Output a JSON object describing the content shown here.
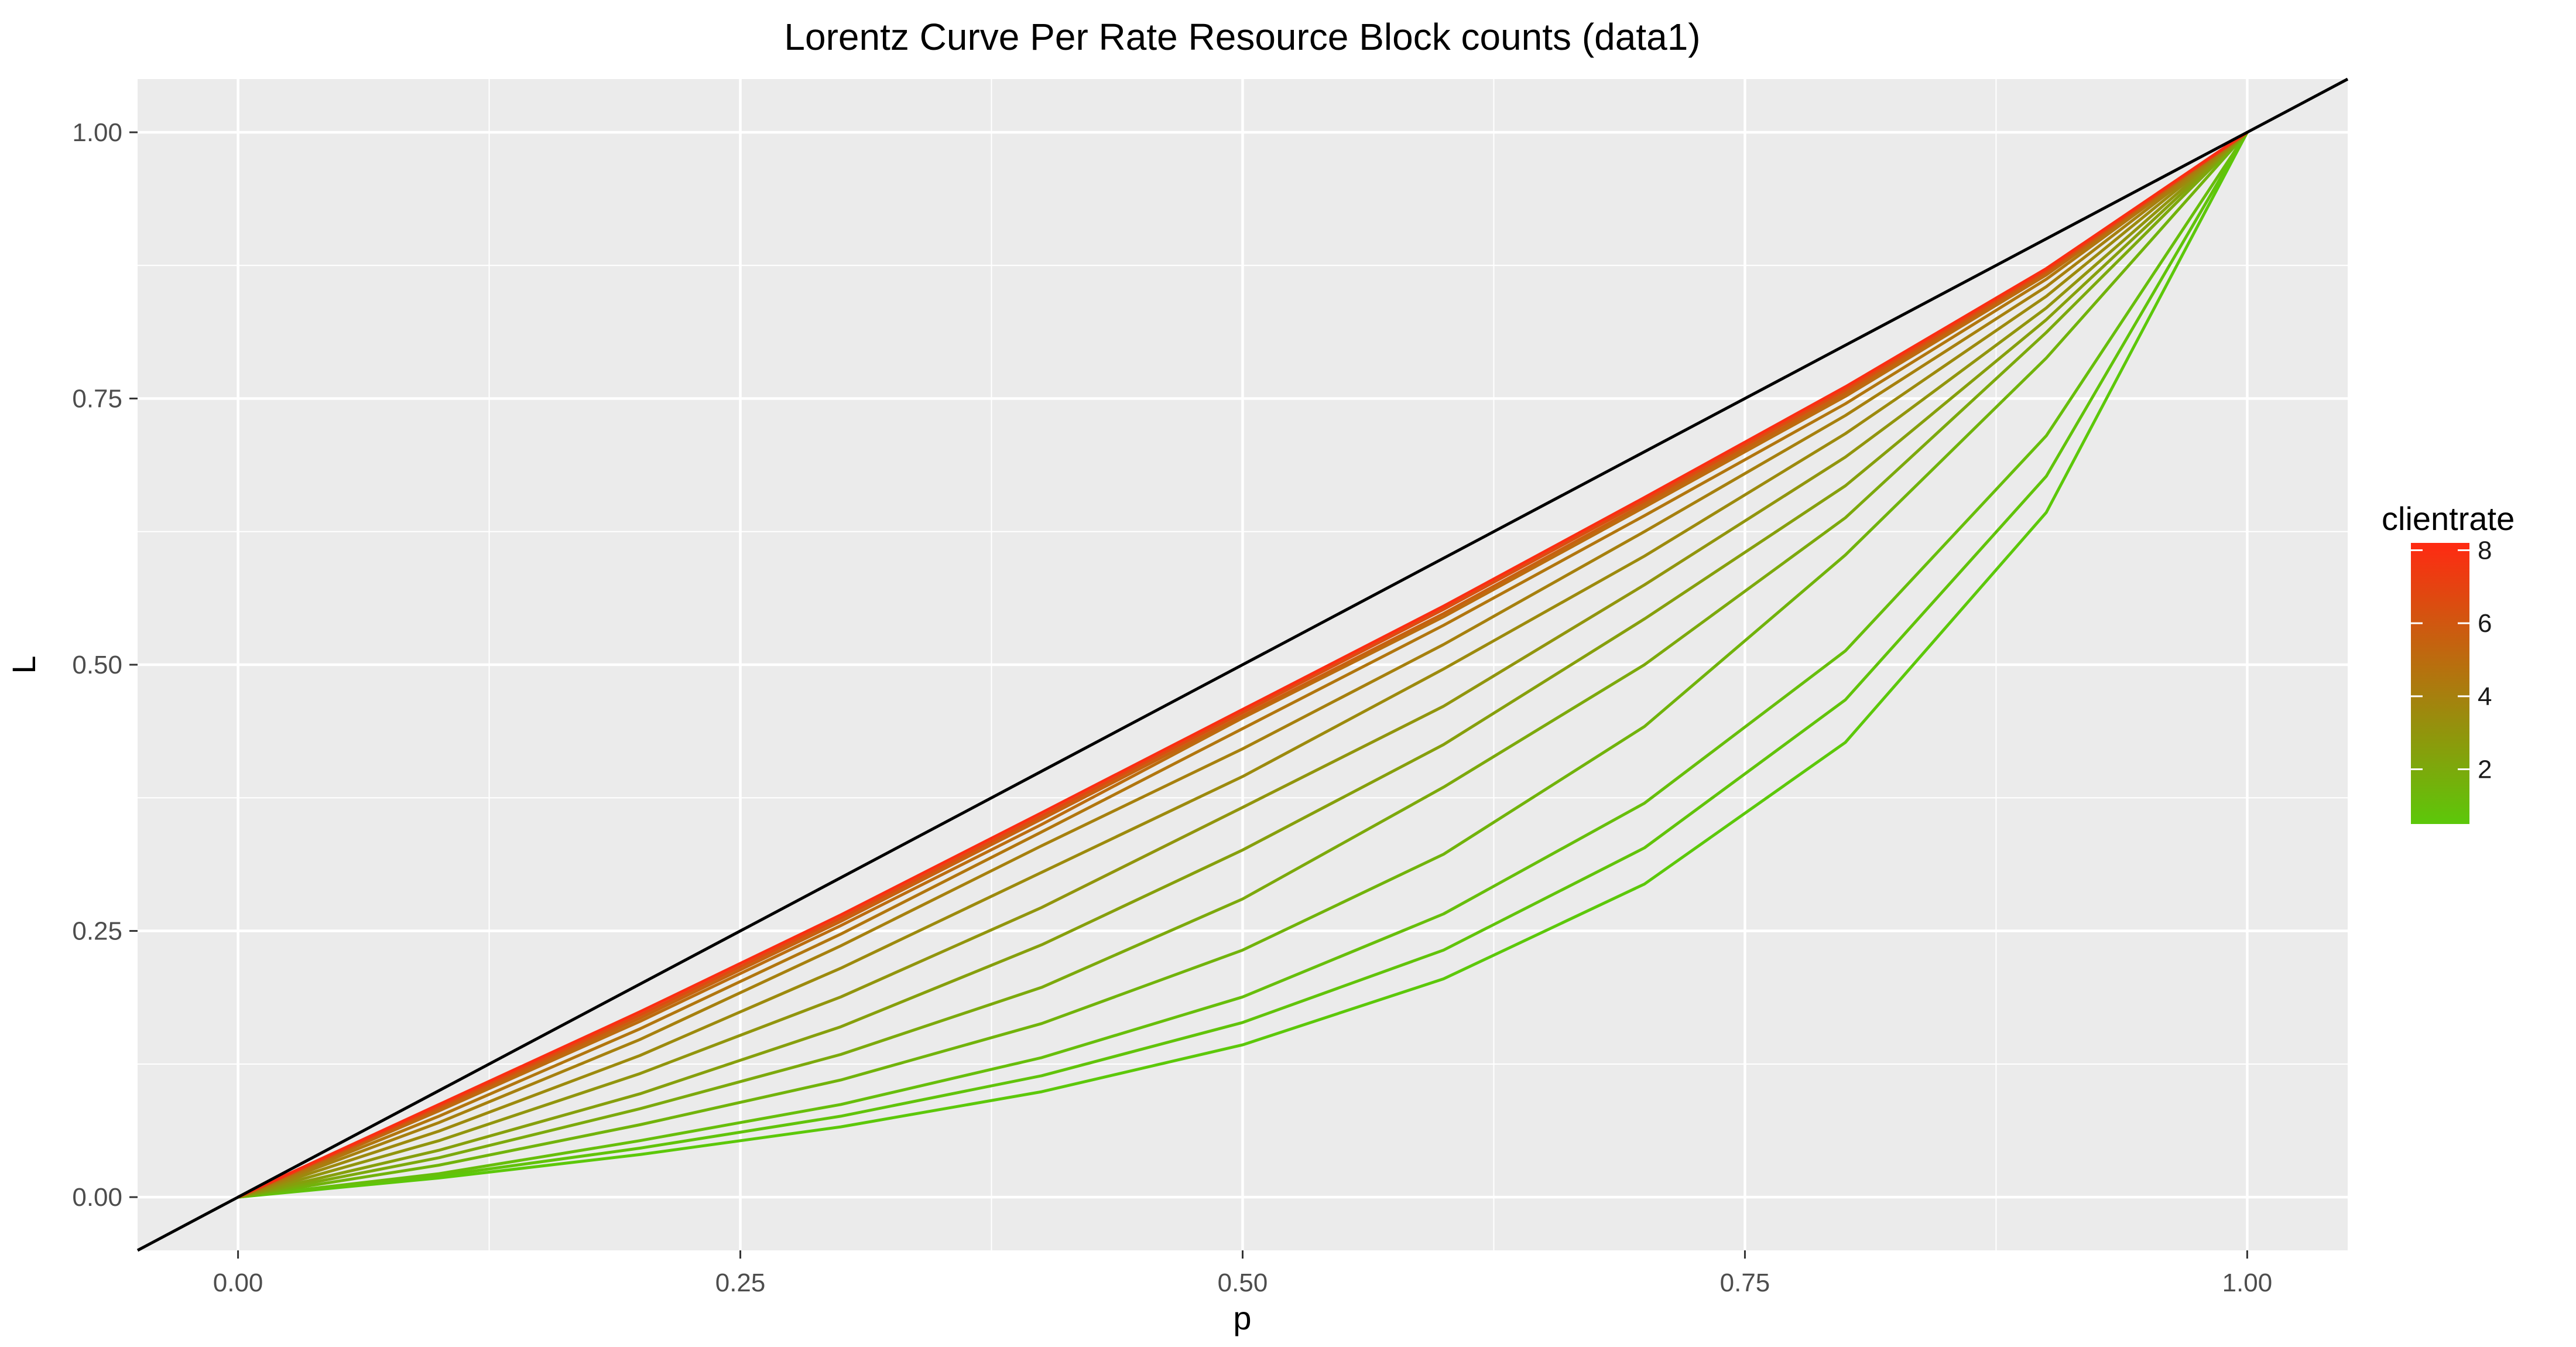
{
  "chart_data": {
    "type": "line",
    "title": "Lorentz Curve Per Rate Resource Block counts (data1)",
    "xlabel": "p",
    "ylabel": "L",
    "xlim": [
      -0.05,
      1.05
    ],
    "ylim": [
      -0.05,
      1.05
    ],
    "x_ticks": [
      0.0,
      0.25,
      0.5,
      0.75,
      1.0
    ],
    "x_tick_labels": [
      "0.00",
      "0.25",
      "0.50",
      "0.75",
      "1.00"
    ],
    "y_ticks": [
      0.0,
      0.25,
      0.5,
      0.75,
      1.0
    ],
    "y_tick_labels": [
      "0.00",
      "0.25",
      "0.50",
      "0.75",
      "1.00"
    ],
    "reference_line": {
      "name": "equality",
      "slope": 1,
      "intercept": 0,
      "color": "#000000"
    },
    "x": [
      0,
      0.1,
      0.2,
      0.3,
      0.4,
      0.5,
      0.6,
      0.7,
      0.8,
      0.9,
      1.0
    ],
    "legend": {
      "title": "clientrate",
      "position": "right",
      "range": [
        0.5,
        8.2
      ],
      "ticks": [
        2,
        4,
        6,
        8
      ],
      "tick_labels": [
        "2",
        "4",
        "6",
        "8"
      ],
      "color_low": "#5cc80a",
      "color_high": "#ff2a12"
    },
    "series": [
      {
        "clientrate": 0.5,
        "values": [
          0,
          0.018,
          0.04,
          0.066,
          0.099,
          0.143,
          0.205,
          0.294,
          0.427,
          0.643,
          1.0
        ]
      },
      {
        "clientrate": 0.75,
        "values": [
          0,
          0.02,
          0.046,
          0.076,
          0.114,
          0.164,
          0.232,
          0.328,
          0.467,
          0.677,
          1.0
        ]
      },
      {
        "clientrate": 1.0,
        "values": [
          0,
          0.022,
          0.053,
          0.087,
          0.131,
          0.188,
          0.266,
          0.37,
          0.513,
          0.715,
          1.0
        ]
      },
      {
        "clientrate": 1.5,
        "values": [
          0,
          0.03,
          0.068,
          0.11,
          0.163,
          0.232,
          0.322,
          0.442,
          0.603,
          0.788,
          1.0
        ]
      },
      {
        "clientrate": 2.0,
        "values": [
          0,
          0.037,
          0.083,
          0.134,
          0.197,
          0.28,
          0.385,
          0.5,
          0.638,
          0.812,
          1.0
        ]
      },
      {
        "clientrate": 2.5,
        "values": [
          0,
          0.044,
          0.097,
          0.16,
          0.237,
          0.326,
          0.425,
          0.543,
          0.668,
          0.824,
          1.0
        ]
      },
      {
        "clientrate": 3.0,
        "values": [
          0,
          0.053,
          0.116,
          0.188,
          0.272,
          0.366,
          0.461,
          0.575,
          0.695,
          0.835,
          1.0
        ]
      },
      {
        "clientrate": 3.5,
        "values": [
          0,
          0.062,
          0.133,
          0.215,
          0.305,
          0.395,
          0.496,
          0.602,
          0.717,
          0.846,
          1.0
        ]
      },
      {
        "clientrate": 4.0,
        "values": [
          0,
          0.07,
          0.148,
          0.236,
          0.33,
          0.421,
          0.519,
          0.625,
          0.734,
          0.855,
          1.0
        ]
      },
      {
        "clientrate": 4.5,
        "values": [
          0,
          0.076,
          0.158,
          0.247,
          0.343,
          0.44,
          0.537,
          0.64,
          0.745,
          0.862,
          1.0
        ]
      },
      {
        "clientrate": 5.0,
        "values": [
          0,
          0.081,
          0.165,
          0.255,
          0.35,
          0.45,
          0.545,
          0.648,
          0.752,
          0.866,
          1.0
        ]
      },
      {
        "clientrate": 5.5,
        "values": [
          0,
          0.083,
          0.168,
          0.259,
          0.355,
          0.452,
          0.548,
          0.651,
          0.755,
          0.868,
          1.0
        ]
      },
      {
        "clientrate": 6.5,
        "values": [
          0,
          0.085,
          0.171,
          0.262,
          0.358,
          0.455,
          0.552,
          0.654,
          0.758,
          0.87,
          1.0
        ]
      },
      {
        "clientrate": 8.0,
        "values": [
          0,
          0.087,
          0.174,
          0.265,
          0.361,
          0.458,
          0.555,
          0.657,
          0.761,
          0.872,
          1.0
        ]
      }
    ]
  }
}
